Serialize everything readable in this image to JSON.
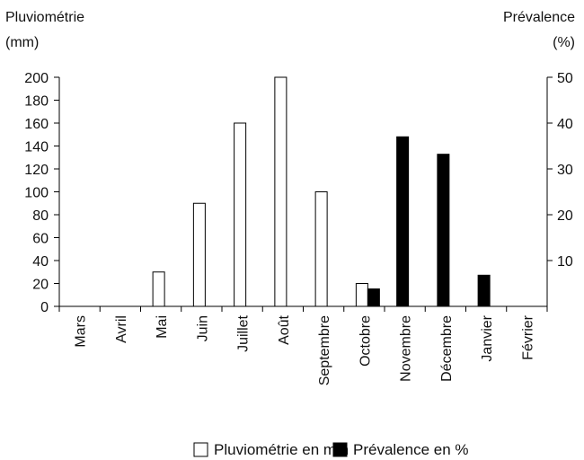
{
  "chart_data": {
    "type": "bar",
    "title": "",
    "xlabel": "",
    "categories": [
      "Mars",
      "Avril",
      "Mai",
      "Juin",
      "Juillet",
      "Août",
      "Septembre",
      "Octobre",
      "Novembre",
      "Décembre",
      "Janvier",
      "Février"
    ],
    "left_axis": {
      "label_line1": "Pluviométrie",
      "label_line2": "(mm)",
      "ylim": [
        0,
        200
      ],
      "ticks": [
        0,
        20,
        40,
        60,
        80,
        100,
        120,
        140,
        160,
        180,
        200
      ]
    },
    "right_axis": {
      "label_line1": "Prévalence",
      "label_line2": "(%)",
      "ylim": [
        0,
        50
      ],
      "ticks": [
        10,
        20,
        30,
        40,
        50
      ]
    },
    "series": [
      {
        "name": "Pluviométrie en mm",
        "axis": "left",
        "color": "#ffffff",
        "values": [
          0,
          0,
          30,
          90,
          160,
          200,
          100,
          20,
          0,
          0,
          0,
          0
        ]
      },
      {
        "name": "Prévalence en %",
        "axis": "right",
        "color": "#000000",
        "values": [
          0,
          0,
          0,
          0,
          0,
          0,
          0,
          3.8,
          37,
          33.2,
          6.8,
          0
        ]
      }
    ],
    "legend_position": "bottom",
    "grid": false
  }
}
